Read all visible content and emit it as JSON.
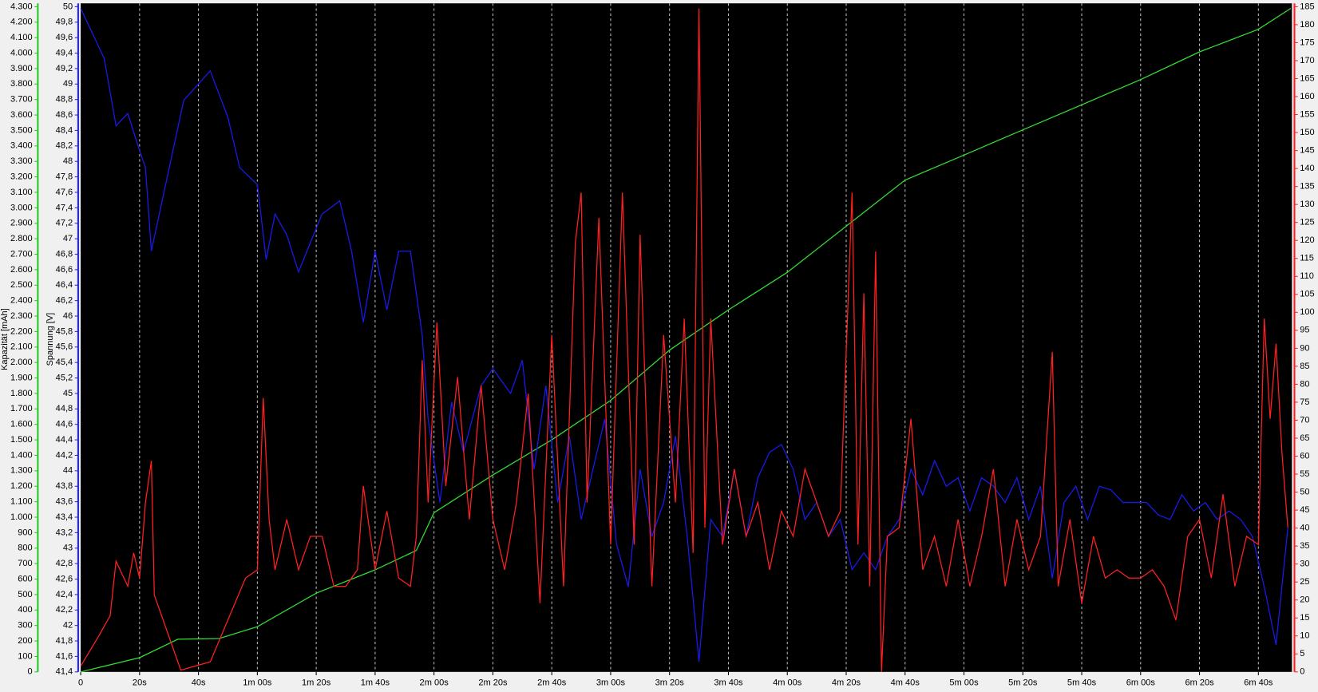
{
  "chart_data": {
    "type": "line",
    "y3label": "Kapazität [mAh]",
    "ylabel": "Spannung [V]",
    "xlim": [
      0,
      411.4
    ],
    "xticks": [
      0,
      {
        "value": 20,
        "label": "20s"
      },
      {
        "value": 40,
        "label": "40s"
      },
      {
        "value": 60,
        "label": "1m 00s"
      },
      {
        "value": 80,
        "label": "1m 20s"
      },
      {
        "value": 100,
        "label": "1m 40s"
      },
      {
        "value": 120,
        "label": "2m 00s"
      },
      {
        "value": 140,
        "label": "2m 20s"
      },
      {
        "value": 160,
        "label": "2m 40s"
      },
      {
        "value": 180,
        "label": "3m 00s"
      },
      {
        "value": 200,
        "label": "3m 20s"
      },
      {
        "value": 220,
        "label": "3m 40s"
      },
      {
        "value": 240,
        "label": "4m 00s"
      },
      {
        "value": 260,
        "label": "4m 20s"
      },
      {
        "value": 280,
        "label": "4m 40s"
      },
      {
        "value": 300,
        "label": "5m 00s"
      },
      {
        "value": 320,
        "label": "5m 20s"
      },
      {
        "value": 340,
        "label": "5m 40s"
      },
      {
        "value": 360,
        "label": "6m 00s"
      },
      {
        "value": 380,
        "label": "6m 20s"
      },
      {
        "value": 400,
        "label": "6m 40s"
      }
    ],
    "grid": true,
    "y3lim": [
      0,
      4300
    ],
    "y3ticks": [
      0,
      100,
      200,
      300,
      400,
      500,
      600,
      700,
      800,
      900,
      {
        "value": 1000,
        "label": "1.000"
      },
      {
        "value": 1100,
        "label": "1.100"
      },
      {
        "value": 1200,
        "label": "1.200"
      },
      {
        "value": 1300,
        "label": "1.300"
      },
      {
        "value": 1400,
        "label": "1.400"
      },
      {
        "value": 1500,
        "label": "1.500"
      },
      {
        "value": 1600,
        "label": "1.600"
      },
      {
        "value": 1700,
        "label": "1.700"
      },
      {
        "value": 1800,
        "label": "1.800"
      },
      {
        "value": 1900,
        "label": "1.900"
      },
      {
        "value": 2000,
        "label": "2.000"
      },
      {
        "value": 2100,
        "label": "2.100"
      },
      {
        "value": 2200,
        "label": "2.200"
      },
      {
        "value": 2300,
        "label": "2.300"
      },
      {
        "value": 2400,
        "label": "2.400"
      },
      {
        "value": 2500,
        "label": "2.500"
      },
      {
        "value": 2600,
        "label": "2.600"
      },
      {
        "value": 2700,
        "label": "2.700"
      },
      {
        "value": 2800,
        "label": "2.800"
      },
      {
        "value": 2900,
        "label": "2.900"
      },
      {
        "value": 3000,
        "label": "3.000"
      },
      {
        "value": 3100,
        "label": "3.100"
      },
      {
        "value": 3200,
        "label": "3.200"
      },
      {
        "value": 3300,
        "label": "3.300"
      },
      {
        "value": 3400,
        "label": "3.400"
      },
      {
        "value": 3500,
        "label": "3.500"
      },
      {
        "value": 3600,
        "label": "3.600"
      },
      {
        "value": 3700,
        "label": "3.700"
      },
      {
        "value": 3800,
        "label": "3.800"
      },
      {
        "value": 3900,
        "label": "3.900"
      },
      {
        "value": 4000,
        "label": "4.000"
      },
      {
        "value": 4100,
        "label": "4.100"
      },
      {
        "value": 4200,
        "label": "4.200"
      },
      {
        "value": 4300,
        "label": "4.300"
      }
    ],
    "y3color": "#22cc22",
    "ylim": [
      41.4,
      50
    ],
    "yticks": [
      {
        "value": 41.4,
        "label": "41,4"
      },
      {
        "value": 41.6,
        "label": "41,6"
      },
      {
        "value": 41.8,
        "label": "41,8"
      },
      42,
      {
        "value": 42.2,
        "label": "42,2"
      },
      {
        "value": 42.4,
        "label": "42,4"
      },
      {
        "value": 42.6,
        "label": "42,6"
      },
      {
        "value": 42.8,
        "label": "42,8"
      },
      43,
      {
        "value": 43.2,
        "label": "43,2"
      },
      {
        "value": 43.4,
        "label": "43,4"
      },
      {
        "value": 43.6,
        "label": "43,6"
      },
      {
        "value": 43.8,
        "label": "43,8"
      },
      44,
      {
        "value": 44.2,
        "label": "44,2"
      },
      {
        "value": 44.4,
        "label": "44,4"
      },
      {
        "value": 44.6,
        "label": "44,6"
      },
      {
        "value": 44.8,
        "label": "44,8"
      },
      45,
      {
        "value": 45.2,
        "label": "45,2"
      },
      {
        "value": 45.4,
        "label": "45,4"
      },
      {
        "value": 45.6,
        "label": "45,6"
      },
      {
        "value": 45.8,
        "label": "45,8"
      },
      46,
      {
        "value": 46.2,
        "label": "46,2"
      },
      {
        "value": 46.4,
        "label": "46,4"
      },
      {
        "value": 46.6,
        "label": "46,6"
      },
      {
        "value": 46.8,
        "label": "46,8"
      },
      47,
      {
        "value": 47.2,
        "label": "47,2"
      },
      {
        "value": 47.4,
        "label": "47,4"
      },
      {
        "value": 47.6,
        "label": "47,6"
      },
      {
        "value": 47.8,
        "label": "47,8"
      },
      48,
      {
        "value": 48.2,
        "label": "48,2"
      },
      {
        "value": 48.4,
        "label": "48,4"
      },
      {
        "value": 48.6,
        "label": "48,6"
      },
      {
        "value": 48.8,
        "label": "48,8"
      },
      49,
      {
        "value": 49.2,
        "label": "49,2"
      },
      {
        "value": 49.4,
        "label": "49,4"
      },
      {
        "value": 49.6,
        "label": "49,6"
      },
      {
        "value": 49.8,
        "label": "49,8"
      },
      50
    ],
    "ycolor": "#2222ff",
    "y2lim": [
      0,
      185
    ],
    "y2ticks": [
      0,
      5,
      10,
      15,
      20,
      25,
      30,
      35,
      40,
      45,
      50,
      55,
      60,
      65,
      70,
      75,
      80,
      85,
      90,
      95,
      100,
      105,
      110,
      115,
      120,
      125,
      130,
      135,
      140,
      145,
      150,
      155,
      160,
      165,
      170,
      175,
      180,
      185
    ],
    "y2color": "#ff2020",
    "series": [
      {
        "axis": "y3",
        "color": "#33dd33",
        "x": [
          0,
          20,
          33,
          47,
          60,
          80,
          100,
          114,
          120,
          140,
          160,
          180,
          200,
          220,
          240,
          260,
          280,
          300,
          320,
          340,
          360,
          380,
          400,
          411
        ],
        "values": [
          0,
          92,
          211,
          216,
          292,
          509,
          660,
          785,
          1029,
          1273,
          1500,
          1755,
          2080,
          2340,
          2583,
          2881,
          3179,
          3341,
          3504,
          3666,
          3829,
          4008,
          4154,
          4289
        ]
      },
      {
        "axis": "y",
        "color": "#1a1aee",
        "x": [
          0,
          8,
          12,
          16,
          20,
          22,
          24,
          35,
          44,
          50,
          54,
          60,
          63,
          66,
          70,
          74,
          78,
          82,
          88,
          92,
          96,
          100,
          104,
          108,
          112,
          116,
          118,
          122,
          126,
          130,
          136,
          140,
          146,
          150,
          154,
          158,
          162,
          166,
          170,
          174,
          178,
          182,
          186,
          190,
          194,
          198,
          202,
          206,
          210,
          214,
          218,
          222,
          226,
          230,
          234,
          238,
          242,
          246,
          250,
          254,
          258,
          262,
          266,
          270,
          274,
          278,
          282,
          286,
          290,
          294,
          298,
          302,
          306,
          310,
          314,
          318,
          322,
          326,
          330,
          334,
          338,
          342,
          346,
          350,
          354,
          358,
          362,
          366,
          370,
          374,
          378,
          382,
          386,
          390,
          394,
          398,
          402,
          406,
          410
        ],
        "values": [
          49.98,
          49.33,
          48.46,
          48.62,
          48.14,
          47.92,
          46.84,
          48.79,
          49.17,
          48.57,
          47.92,
          47.7,
          46.73,
          47.32,
          47.05,
          46.57,
          46.95,
          47.32,
          47.49,
          46.84,
          45.92,
          46.84,
          46.08,
          46.84,
          46.84,
          45.75,
          44.67,
          43.59,
          44.89,
          44.24,
          45.1,
          45.32,
          45.0,
          45.43,
          44.02,
          45.1,
          43.59,
          44.45,
          43.37,
          44.02,
          44.67,
          43.05,
          42.5,
          44.02,
          43.15,
          43.59,
          44.45,
          43.15,
          41.53,
          43.37,
          43.15,
          44.02,
          43.15,
          43.91,
          44.24,
          44.34,
          44.02,
          43.37,
          43.59,
          43.15,
          43.37,
          42.72,
          42.94,
          42.72,
          43.15,
          43.37,
          44.02,
          43.69,
          44.13,
          43.8,
          43.91,
          43.48,
          43.91,
          43.8,
          43.59,
          43.91,
          43.37,
          43.8,
          42.61,
          43.59,
          43.8,
          43.37,
          43.8,
          43.75,
          43.59,
          43.59,
          43.59,
          43.43,
          43.37,
          43.69,
          43.48,
          43.59,
          43.37,
          43.48,
          43.37,
          43.15,
          42.5,
          41.75,
          43.26
        ]
      },
      {
        "axis": "y2",
        "color": "#ff2020",
        "x": [
          0,
          6,
          10,
          12,
          16,
          18,
          20,
          22,
          24,
          25,
          34,
          44,
          56,
          60,
          62,
          64,
          66,
          70,
          74,
          78,
          82,
          86,
          90,
          94,
          96,
          100,
          104,
          108,
          112,
          114,
          116,
          118,
          121,
          124,
          128,
          132,
          136,
          140,
          144,
          148,
          152,
          156,
          160,
          164,
          168,
          170,
          172,
          176,
          180,
          184,
          188,
          190,
          194,
          198,
          202,
          205,
          208,
          210,
          212,
          214,
          218,
          222,
          226,
          230,
          234,
          238,
          242,
          246,
          250,
          254,
          258,
          262,
          264,
          266,
          268,
          270,
          272,
          274,
          278,
          282,
          286,
          290,
          294,
          298,
          302,
          306,
          310,
          314,
          318,
          322,
          326,
          330,
          332,
          336,
          340,
          344,
          348,
          352,
          356,
          360,
          364,
          368,
          372,
          376,
          380,
          384,
          388,
          392,
          396,
          400,
          402,
          404,
          406,
          408,
          410
        ],
        "values": [
          1.6,
          9.8,
          15.6,
          30.8,
          23.8,
          33.1,
          26.1,
          47.1,
          58.7,
          21.4,
          0.5,
          2.8,
          26.1,
          28.4,
          76.2,
          42.4,
          28.4,
          42.4,
          28.4,
          37.7,
          37.7,
          23.8,
          23.8,
          28.4,
          51.7,
          28.4,
          44.7,
          26.1,
          23.8,
          37.7,
          86.7,
          47.1,
          97.2,
          51.7,
          82.0,
          42.4,
          79.7,
          42.4,
          28.4,
          47.1,
          77.4,
          19.1,
          93.7,
          23.8,
          119.3,
          133.3,
          47.1,
          126.3,
          35.4,
          133.3,
          35.4,
          121.6,
          23.8,
          93.7,
          47.1,
          98.3,
          33.1,
          184.5,
          40.1,
          98.3,
          35.4,
          56.4,
          37.7,
          47.1,
          28.4,
          44.7,
          37.7,
          56.4,
          47.1,
          37.7,
          44.7,
          133.3,
          35.4,
          105.3,
          23.8,
          116.9,
          0,
          37.7,
          40.1,
          70.4,
          28.4,
          37.7,
          23.8,
          42.4,
          23.8,
          37.7,
          56.4,
          23.8,
          42.4,
          28.4,
          37.7,
          89.0,
          23.8,
          42.4,
          19.1,
          37.7,
          26.1,
          28.4,
          26.1,
          26.1,
          28.4,
          23.8,
          14.4,
          37.7,
          42.4,
          26.1,
          49.4,
          23.8,
          37.7,
          35.4,
          98.3,
          70.4,
          91.3,
          61.0,
          40.1
        ]
      }
    ]
  }
}
